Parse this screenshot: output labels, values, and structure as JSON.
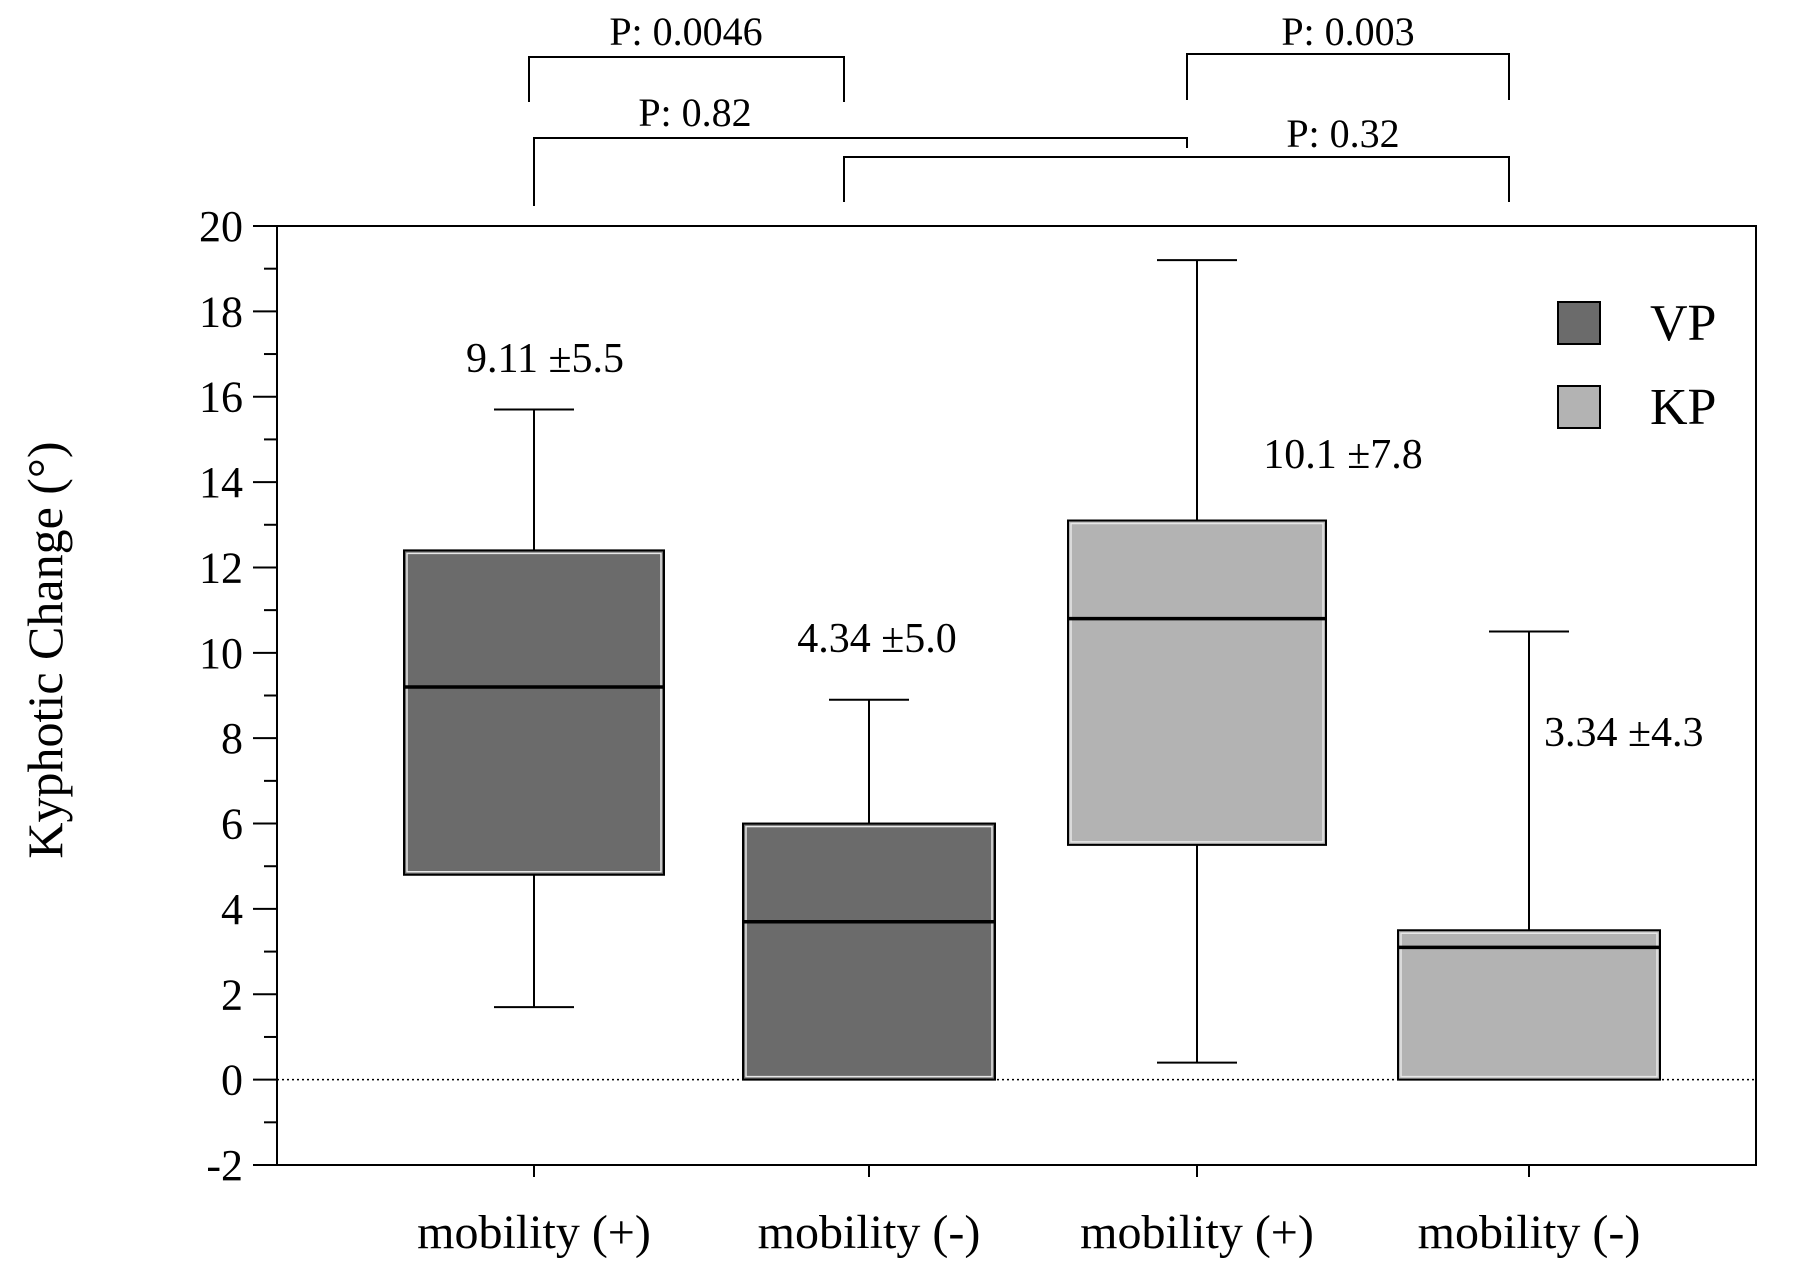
{
  "chart_data": {
    "type": "box",
    "ylabel": "Kyphotic Change (°)",
    "ylim": [
      -2,
      20
    ],
    "yticks": [
      -2,
      0,
      2,
      4,
      6,
      8,
      10,
      12,
      14,
      16,
      18,
      20
    ],
    "ytick_labels": [
      "-2",
      "0",
      "2",
      "4",
      "6",
      "8",
      "10",
      "12",
      "14",
      "16",
      "18",
      "20"
    ],
    "reference_line": 0,
    "categories": [
      "mobility (+)",
      "mobility (-)",
      "mobility (+)",
      "mobility (-)"
    ],
    "legend": {
      "placement": "top-right",
      "entries": [
        {
          "name": "VP",
          "color": "#6b6b6b"
        },
        {
          "name": "KP",
          "color": "#b3b3b3"
        }
      ]
    },
    "boxes": [
      {
        "category": "mobility (+)",
        "group": "VP",
        "whisker_low": 1.7,
        "q1": 4.8,
        "median": 9.2,
        "q3": 12.4,
        "whisker_high": 15.7,
        "annotation": "9.11 ±5.5"
      },
      {
        "category": "mobility (-)",
        "group": "VP",
        "whisker_low": 0.0,
        "q1": 0.0,
        "median": 3.7,
        "q3": 6.0,
        "whisker_high": 8.9,
        "annotation": "4.34 ±5.0"
      },
      {
        "category": "mobility (+)",
        "group": "KP",
        "whisker_low": 0.4,
        "q1": 5.5,
        "median": 10.8,
        "q3": 13.1,
        "whisker_high": 19.2,
        "annotation": "10.1 ±7.8"
      },
      {
        "category": "mobility (-)",
        "group": "KP",
        "whisker_low": 0.0,
        "q1": 0.0,
        "median": 3.1,
        "q3": 3.5,
        "whisker_high": 10.5,
        "annotation": "3.34 ±4.3"
      }
    ],
    "comparisons": [
      {
        "from": 0,
        "to": 1,
        "label": "P: 0.0046"
      },
      {
        "from": 2,
        "to": 3,
        "label": "P: 0.003"
      },
      {
        "from": 0,
        "to": 2,
        "label": "P: 0.82"
      },
      {
        "from": 1,
        "to": 3,
        "label": "P: 0.32"
      }
    ]
  }
}
